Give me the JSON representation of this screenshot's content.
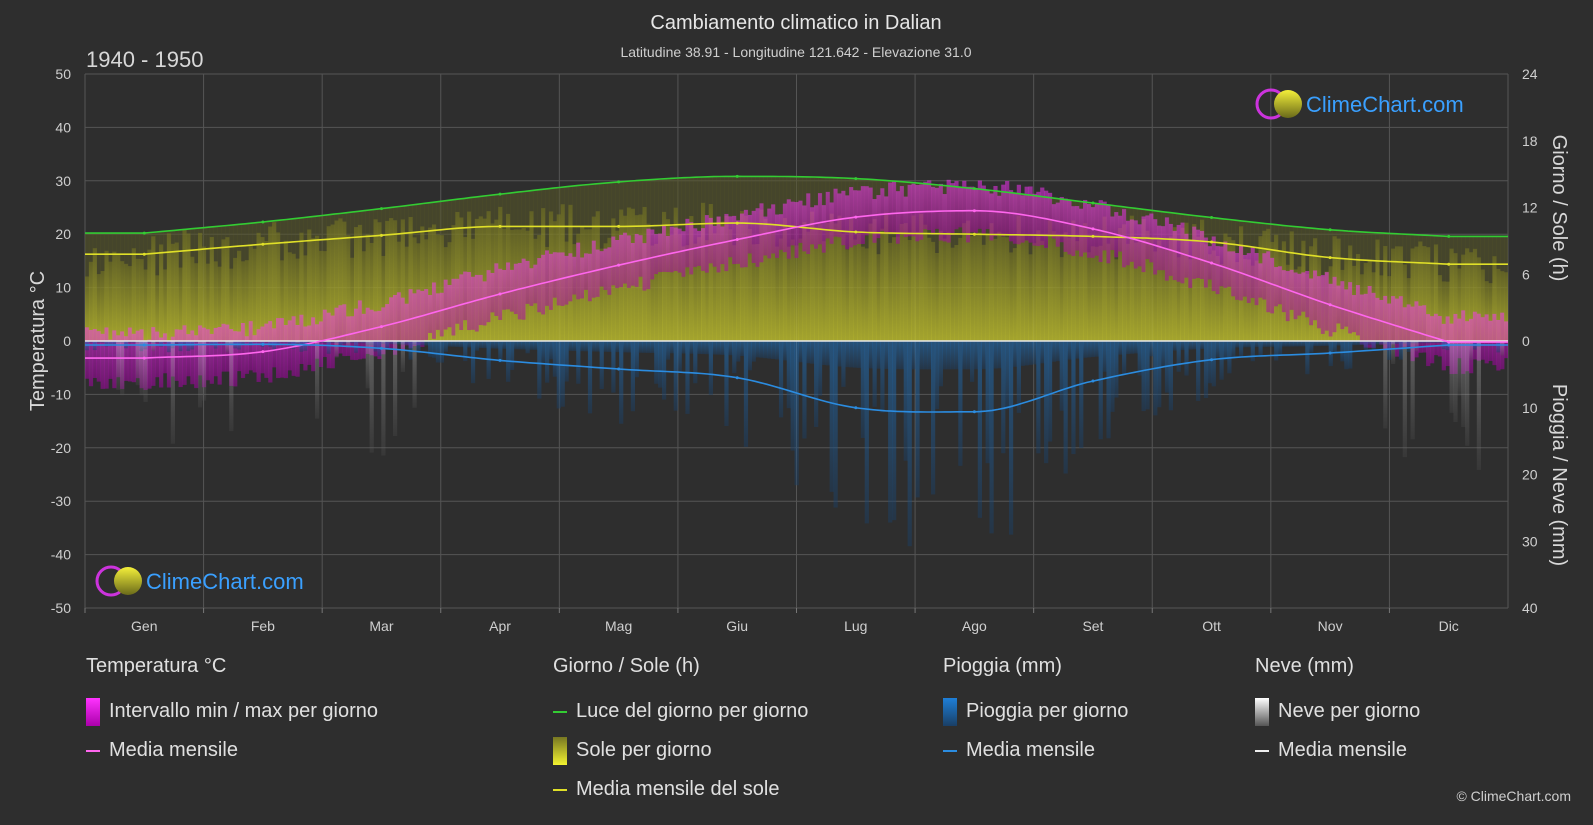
{
  "title": "Cambiamento climatico in Dalian",
  "subtitle": "Latitudine 38.91 - Longitudine 121.642 - Elevazione 31.0",
  "period": "1940 - 1950",
  "copyright": "© ClimeChart.com",
  "logo_text": "ClimeChart.com",
  "chart_data": {
    "type": "line",
    "categories": [
      "Gen",
      "Feb",
      "Mar",
      "Apr",
      "Mag",
      "Giu",
      "Lug",
      "Ago",
      "Set",
      "Ott",
      "Nov",
      "Dic"
    ],
    "y_left": {
      "label": "Temperatura °C",
      "range": [
        -50,
        50
      ],
      "ticks": [
        50,
        40,
        30,
        20,
        10,
        0,
        -10,
        -20,
        -30,
        -40,
        -50
      ]
    },
    "y_right_top": {
      "label": "Giorno / Sole (h)",
      "range": [
        0,
        24
      ],
      "ticks": [
        24,
        18,
        12,
        6,
        0
      ]
    },
    "y_right_bottom": {
      "label": "Pioggia / Neve (mm)",
      "range": [
        0,
        40
      ],
      "ticks": [
        0,
        10,
        20,
        30,
        40
      ]
    },
    "grid": true,
    "series": [
      {
        "name": "Luce del giorno per giorno",
        "axis": "sun_h",
        "color": "#33cc33",
        "values": [
          9.7,
          10.7,
          11.9,
          13.2,
          14.3,
          14.8,
          14.6,
          13.7,
          12.4,
          11.1,
          10.0,
          9.4
        ]
      },
      {
        "name": "Media mensile del sole",
        "axis": "sun_h",
        "color": "#e0e028",
        "values": [
          7.8,
          8.7,
          9.5,
          10.3,
          10.3,
          10.6,
          9.8,
          9.6,
          9.4,
          8.9,
          7.5,
          6.9
        ]
      },
      {
        "name": "Media mensile",
        "group": "temperature",
        "axis": "temp_c",
        "color": "#ff66ee",
        "values": [
          -3.2,
          -2.0,
          2.7,
          8.8,
          14.2,
          19.0,
          23.2,
          24.4,
          21.0,
          14.6,
          6.8,
          -0.2
        ]
      },
      {
        "name": "Media mensile",
        "group": "rain",
        "axis": "precip_mm",
        "color": "#2b8ce0",
        "values": [
          0.6,
          0.5,
          1.1,
          2.9,
          4.2,
          5.5,
          10.0,
          10.6,
          6.0,
          2.8,
          1.8,
          0.6
        ]
      }
    ]
  },
  "legend": {
    "temperature": {
      "heading": "Temperatura °C",
      "range_label": "Intervallo min / max per giorno",
      "mean_label": "Media mensile"
    },
    "sun": {
      "heading": "Giorno / Sole (h)",
      "daylight_label": "Luce del giorno per giorno",
      "sun_label": "Sole per giorno",
      "mean_label": "Media mensile del sole"
    },
    "rain": {
      "heading": "Pioggia (mm)",
      "day_label": "Pioggia per giorno",
      "mean_label": "Media mensile"
    },
    "snow": {
      "heading": "Neve (mm)",
      "day_label": "Neve per giorno",
      "mean_label": "Media mensile"
    }
  },
  "colors": {
    "background": "#2e2e2e",
    "grid": "#555555",
    "daylight": "#33cc33",
    "sun": "#e0e028",
    "temp_mean": "#ff66ee",
    "temp_range": "#dd22dd",
    "rain": "#2b8ce0",
    "snow": "#cccccc",
    "logo": "#3aa0ff"
  }
}
